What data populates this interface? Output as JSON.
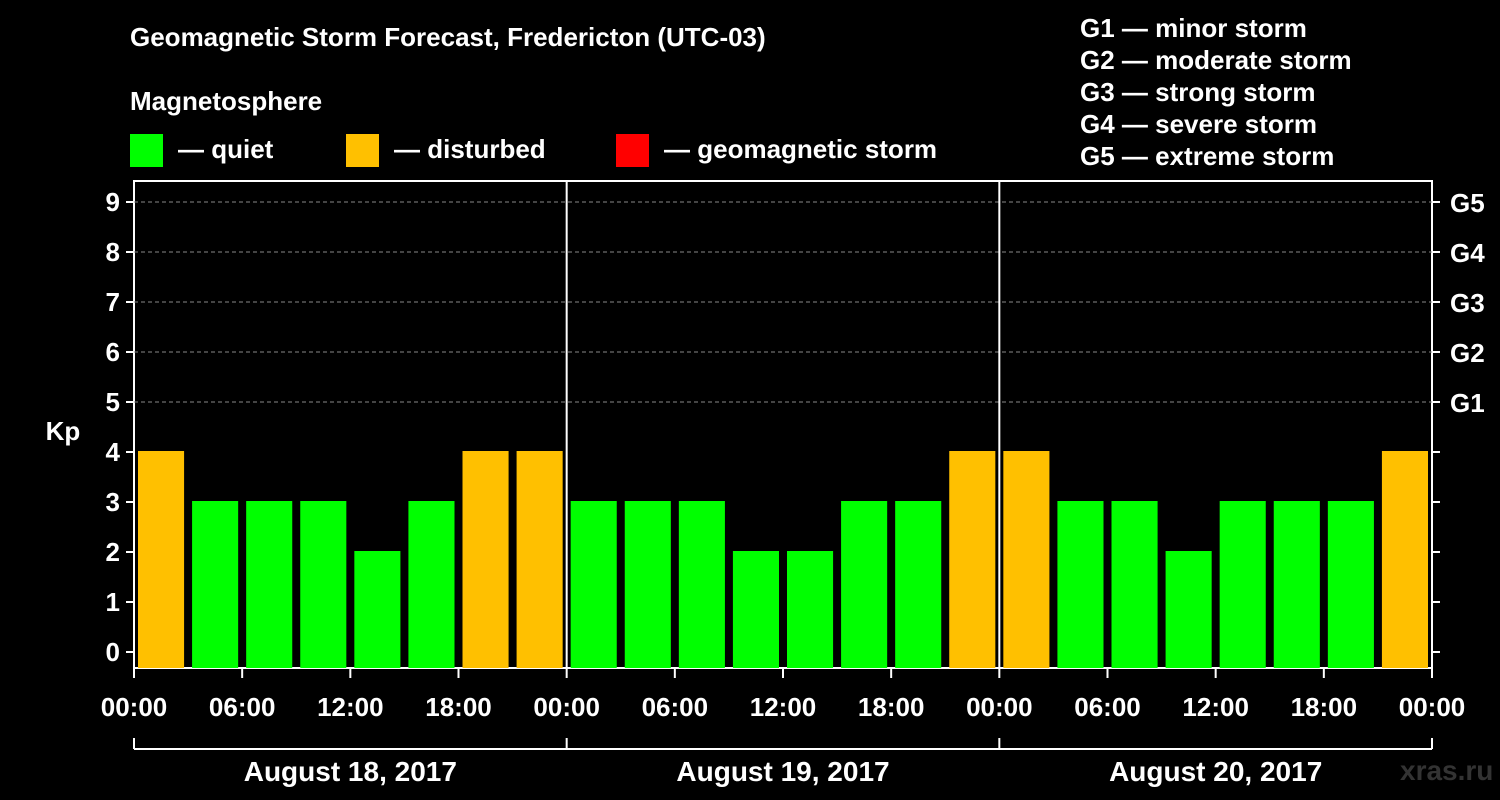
{
  "title": "Geomagnetic Storm Forecast, Fredericton (UTC-03)",
  "magnetosphere_label": "Magnetosphere",
  "legend": [
    {
      "label": "— quiet",
      "color": "#00ff00"
    },
    {
      "label": "— disturbed",
      "color": "#ffc000"
    },
    {
      "label": "— geomagnetic storm",
      "color": "#ff0000"
    }
  ],
  "g_legend": [
    "G1 — minor storm",
    "G2 — moderate storm",
    "G3 — strong storm",
    "G4 — severe storm",
    "G5 — extreme storm"
  ],
  "watermark": "xras.ru",
  "chart_data": {
    "type": "bar",
    "title": "Geomagnetic Storm Forecast, Fredericton (UTC-03)",
    "ylabel": "Kp",
    "ylim": [
      0,
      9
    ],
    "y_ticks": [
      "0",
      "1",
      "2",
      "3",
      "4",
      "5",
      "6",
      "7",
      "8",
      "9"
    ],
    "right_ticks": [
      {
        "value": 5,
        "label": "G1"
      },
      {
        "value": 6,
        "label": "G2"
      },
      {
        "value": 7,
        "label": "G3"
      },
      {
        "value": 8,
        "label": "G4"
      },
      {
        "value": 9,
        "label": "G5"
      }
    ],
    "x_tick_labels": [
      "00:00",
      "06:00",
      "12:00",
      "18:00",
      "00:00",
      "06:00",
      "12:00",
      "18:00",
      "00:00",
      "06:00",
      "12:00",
      "18:00",
      "00:00"
    ],
    "days": [
      "August 18, 2017",
      "August 19, 2017",
      "August 20, 2017"
    ],
    "interval_hours": 3,
    "values": [
      4,
      3,
      3,
      3,
      2,
      3,
      4,
      4,
      3,
      3,
      3,
      2,
      2,
      3,
      3,
      4,
      4,
      3,
      3,
      2,
      3,
      3,
      3,
      4
    ],
    "thresholds": {
      "disturbed": 4,
      "storm": 5
    },
    "colors": {
      "quiet": "#00ff00",
      "disturbed": "#ffc000",
      "storm": "#ff0000",
      "grid": "#888888"
    }
  }
}
